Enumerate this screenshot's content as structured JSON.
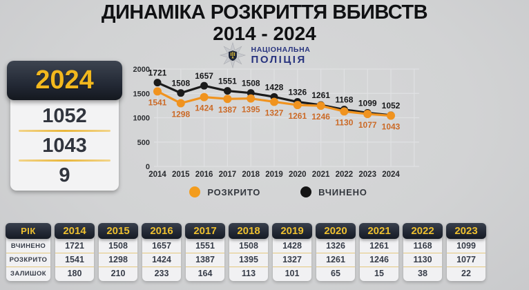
{
  "title": {
    "line1": "ДИНАМІКА РОЗКРИТТЯ ВБИВСТВ",
    "line2": "2014 - 2024"
  },
  "logo": {
    "line1": "НАЦІОНАЛЬНА",
    "line2": "ПОЛІЦІЯ"
  },
  "summary_card": {
    "year": "2024",
    "values": [
      "1052",
      "1043",
      "9"
    ]
  },
  "chart_data": {
    "type": "line",
    "x": [
      2014,
      2015,
      2016,
      2017,
      2018,
      2019,
      2020,
      2021,
      2022,
      2023,
      2024
    ],
    "series": [
      {
        "name": "ВЧИНЕНО",
        "color": "#1b1b1b",
        "label_color": "#17181a",
        "label_pos": "above",
        "values": [
          1721,
          1508,
          1657,
          1551,
          1508,
          1428,
          1326,
          1261,
          1168,
          1099,
          1052
        ]
      },
      {
        "name": "РОЗКРИТО",
        "color": "#f0931f",
        "label_color": "#cb6a27",
        "label_pos": "below",
        "values": [
          1541,
          1298,
          1424,
          1387,
          1395,
          1327,
          1261,
          1246,
          1130,
          1077,
          1043
        ]
      }
    ],
    "ylim": [
      0,
      2000
    ],
    "yticks": [
      0,
      500,
      1000,
      1500,
      2000
    ],
    "grid": true,
    "legend_position": "bottom",
    "legend": [
      {
        "label": "РОЗКРИТО",
        "color": "#f39c1d"
      },
      {
        "label": "ВЧИНЕНО",
        "color": "#141414"
      }
    ]
  },
  "table": {
    "header_label": "РІК",
    "row_labels": [
      "ВЧИНЕНО",
      "РОЗКРИТО",
      "ЗАЛИШОК"
    ],
    "years": [
      "2014",
      "2015",
      "2016",
      "2017",
      "2018",
      "2019",
      "2020",
      "2021",
      "2022",
      "2023"
    ],
    "values": [
      [
        1721,
        1541,
        180
      ],
      [
        1508,
        1298,
        210
      ],
      [
        1657,
        1424,
        233
      ],
      [
        1551,
        1387,
        164
      ],
      [
        1508,
        1395,
        113
      ],
      [
        1428,
        1327,
        101
      ],
      [
        1326,
        1261,
        65
      ],
      [
        1261,
        1246,
        15
      ],
      [
        1168,
        1130,
        38
      ],
      [
        1099,
        1077,
        22
      ]
    ]
  },
  "colors": {
    "background": "#d2d3d4",
    "accent_gold": "#f2b81e",
    "orange_line": "#f0931f",
    "orange_label": "#cb6a27",
    "black_line": "#1b1b1b",
    "dark_panel": "#232935",
    "logo_blue": "#27337e",
    "grid_line": "#e0e1e3"
  }
}
